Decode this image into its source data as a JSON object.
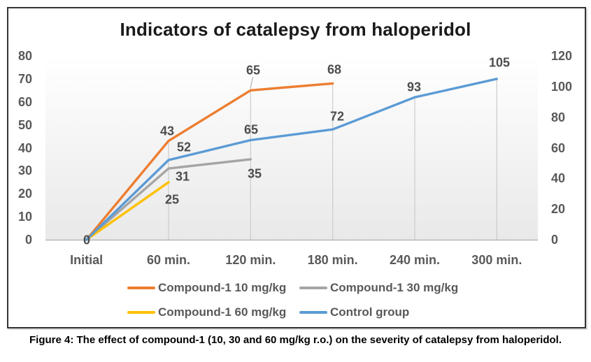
{
  "figure": {
    "title": "Indicators of catalepsy from haloperidol",
    "caption": "Figure 4: The effect of compound-1 (10, 30 and 60 mg/kg r.o.) on the severity of catalepsy from haloperidol."
  },
  "chart_data": {
    "type": "line",
    "title": "Indicators of catalepsy from haloperidol",
    "categories": [
      "Initial",
      "60 min.",
      "120 min.",
      "180 min.",
      "240 min.",
      "300 min."
    ],
    "left_axis": {
      "range": [
        0,
        80
      ],
      "ticks": [
        80,
        70,
        60,
        50,
        40,
        30,
        20,
        10,
        0
      ]
    },
    "right_axis": {
      "range": [
        0,
        120
      ],
      "ticks": [
        120,
        100,
        80,
        60,
        40,
        20,
        0
      ]
    },
    "grid": "vertical-drop-lines",
    "legend_position": "bottom",
    "plot_bg_top": "#ffffff",
    "plot_bg_bottom": "#e9e9e9",
    "series": [
      {
        "name": "Compound-1 10 mg/kg",
        "color": "#ED7D31",
        "axis": "left",
        "values": [
          0,
          43,
          65,
          68,
          null,
          null
        ]
      },
      {
        "name": "Compound-1 30 mg/kg",
        "color": "#A5A5A5",
        "axis": "left",
        "values": [
          0,
          31,
          35,
          null,
          null,
          null
        ]
      },
      {
        "name": "Compound-1 60 mg/kg",
        "color": "#FFC000",
        "axis": "left",
        "values": [
          0,
          25,
          null,
          null,
          null,
          null
        ]
      },
      {
        "name": "Control group",
        "color": "#5B9BD5",
        "axis": "right",
        "values": [
          0,
          52,
          65,
          72,
          93,
          105
        ]
      }
    ]
  }
}
